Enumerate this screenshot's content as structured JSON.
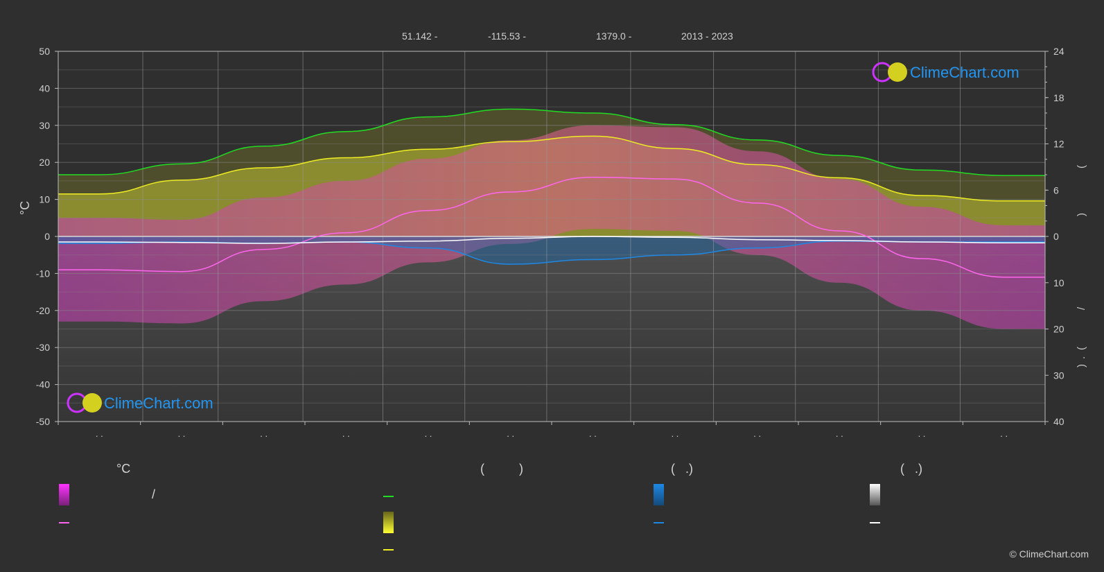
{
  "header": {
    "lat": "51.142 -",
    "lon": "-115.53 -",
    "elev": "1379.0 -",
    "years": "2013 - 2023"
  },
  "chart_data": {
    "type": "area",
    "months": 12,
    "left_axis": {
      "label": "°C",
      "ylim": [
        -50,
        50
      ],
      "ticks": [
        50,
        40,
        30,
        20,
        10,
        0,
        -10,
        -20,
        -30,
        -40,
        -50
      ]
    },
    "right_axis_top": {
      "ylim": [
        0,
        24
      ],
      "ticks": [
        24,
        18,
        12,
        6,
        0
      ]
    },
    "right_axis_bottom": {
      "ylim": [
        0,
        40
      ],
      "ticks": [
        0,
        10,
        20,
        30,
        40
      ]
    },
    "right_axis_fragments": [
      "(",
      ")",
      "/",
      "(",
      ".",
      ")"
    ],
    "x_tick_labels": [
      ". .",
      ". .",
      ". .",
      ". .",
      ". .",
      ". .",
      ". .",
      ". .",
      ". .",
      ". .",
      ". .",
      ". ."
    ],
    "grid": true,
    "series": [
      {
        "key": "daylight",
        "color": "#22dd22",
        "axis": "hours",
        "values": [
          8.0,
          9.4,
          11.7,
          13.6,
          15.5,
          16.5,
          16.0,
          14.5,
          12.5,
          10.5,
          8.6,
          7.9
        ]
      },
      {
        "key": "sunshine",
        "color": "#eeee22",
        "axis": "hours",
        "values": [
          5.5,
          7.3,
          8.9,
          10.2,
          11.3,
          12.3,
          13.0,
          11.4,
          9.3,
          7.6,
          5.3,
          4.6
        ]
      },
      {
        "key": "max_temp",
        "color": "#ff66ee",
        "axis": "temp",
        "values": [
          -9,
          -9.5,
          -3.5,
          1,
          7,
          12,
          16,
          15.5,
          9,
          1.5,
          -6,
          -11
        ]
      },
      {
        "key": "precipitation",
        "color": "#1e88e5",
        "axis": "mm",
        "values": [
          1.5,
          1.2,
          1.5,
          1.2,
          2.5,
          6.0,
          5.0,
          4.0,
          2.5,
          1.0,
          1.2,
          1.2
        ]
      },
      {
        "key": "snow",
        "color": "#ffffff",
        "axis": "mm",
        "values": [
          1.2,
          1.3,
          1.5,
          1.2,
          1.0,
          0.4,
          0.0,
          0.2,
          0.7,
          0.9,
          1.2,
          1.4
        ]
      }
    ]
  },
  "legend": {
    "col1_head": "°C",
    "col1_slash": "/",
    "col2_head": "(          )",
    "col3_head": "(   .)",
    "col4_head": "(   .)"
  },
  "watermarks": [
    "ClimeChart.com",
    "ClimeChart.com"
  ],
  "copyright": "© ClimeChart.com",
  "colors": {
    "background": "#2f2f2f",
    "accent": "#1e90ff"
  }
}
